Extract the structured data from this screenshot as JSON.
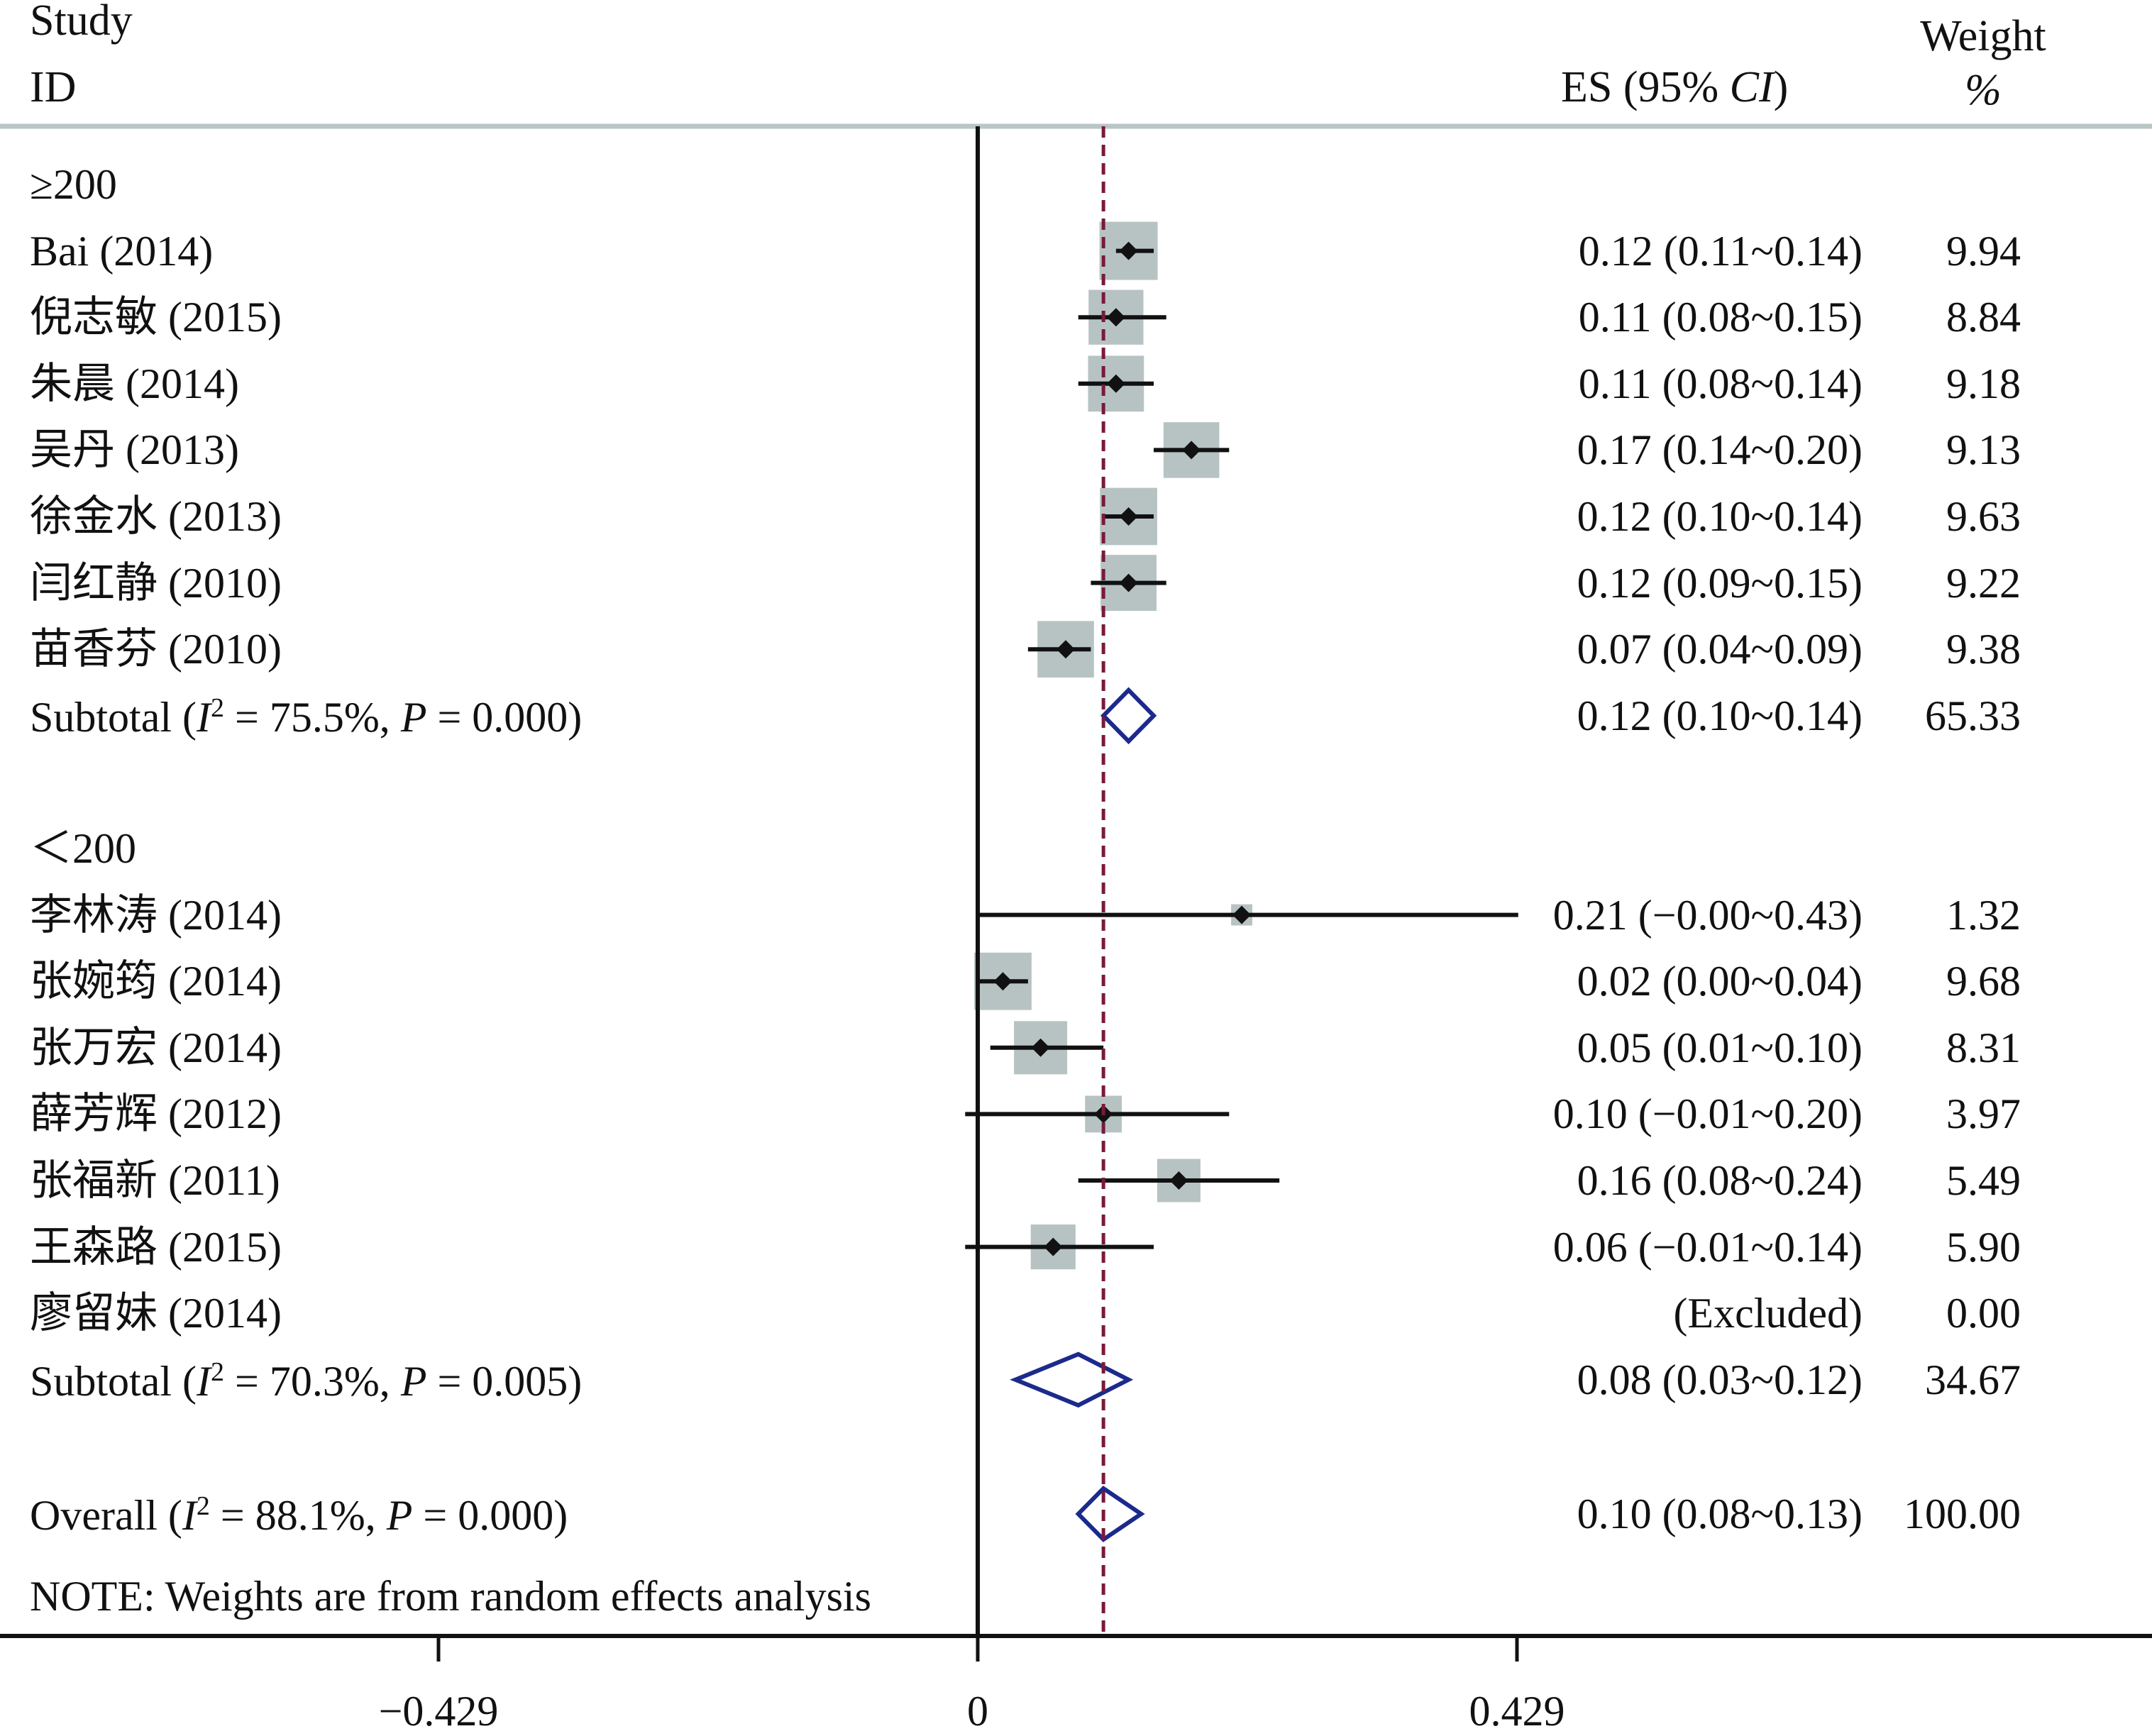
{
  "chart_data": {
    "type": "forest",
    "header": {
      "study_label": "Study",
      "id_label": "ID",
      "es_label": "ES (95% CI)",
      "weight_label": "Weight",
      "weight_unit": "%"
    },
    "null_line_value": 0,
    "overall_line_value": 0.1,
    "x_ticks": [
      {
        "value": -0.429,
        "label": "−0.429"
      },
      {
        "value": 0,
        "label": "0"
      },
      {
        "value": 0.429,
        "label": "0.429"
      }
    ],
    "x_range": [
      -0.78,
      0.93
    ],
    "groups": [
      {
        "label": "≥200",
        "studies": [
          {
            "name": "Bai (2014)",
            "es": 0.12,
            "lo": 0.11,
            "hi": 0.14,
            "es_text": "0.12 (0.11~0.14)",
            "weight": 9.94,
            "weight_text": "9.94"
          },
          {
            "name": "倪志敏 (2015)",
            "es": 0.11,
            "lo": 0.08,
            "hi": 0.15,
            "es_text": "0.11 (0.08~0.15)",
            "weight": 8.84,
            "weight_text": "8.84"
          },
          {
            "name": "朱晨 (2014)",
            "es": 0.11,
            "lo": 0.08,
            "hi": 0.14,
            "es_text": "0.11 (0.08~0.14)",
            "weight": 9.18,
            "weight_text": "9.18"
          },
          {
            "name": "吴丹 (2013)",
            "es": 0.17,
            "lo": 0.14,
            "hi": 0.2,
            "es_text": "0.17 (0.14~0.20)",
            "weight": 9.13,
            "weight_text": "9.13"
          },
          {
            "name": "徐金水 (2013)",
            "es": 0.12,
            "lo": 0.1,
            "hi": 0.14,
            "es_text": "0.12 (0.10~0.14)",
            "weight": 9.63,
            "weight_text": "9.63"
          },
          {
            "name": "闫红静 (2010)",
            "es": 0.12,
            "lo": 0.09,
            "hi": 0.15,
            "es_text": "0.12 (0.09~0.15)",
            "weight": 9.22,
            "weight_text": "9.22"
          },
          {
            "name": "苗香芬 (2010)",
            "es": 0.07,
            "lo": 0.04,
            "hi": 0.09,
            "es_text": "0.07 (0.04~0.09)",
            "weight": 9.38,
            "weight_text": "9.38"
          }
        ],
        "subtotal": {
          "label": "Subtotal",
          "i2": "75.5%",
          "p": "0.000",
          "es": 0.12,
          "lo": 0.1,
          "hi": 0.14,
          "es_text": "0.12 (0.10~0.14)",
          "weight_text": "65.33"
        }
      },
      {
        "label": "＜200",
        "studies": [
          {
            "name": "李林涛 (2014)",
            "es": 0.21,
            "lo": -0.0,
            "hi": 0.43,
            "es_text": "0.21 (−0.00~0.43)",
            "weight": 1.32,
            "weight_text": "1.32"
          },
          {
            "name": "张婉筠 (2014)",
            "es": 0.02,
            "lo": 0.0,
            "hi": 0.04,
            "es_text": "0.02 (0.00~0.04)",
            "weight": 9.68,
            "weight_text": "9.68"
          },
          {
            "name": "张万宏 (2014)",
            "es": 0.05,
            "lo": 0.01,
            "hi": 0.1,
            "es_text": "0.05 (0.01~0.10)",
            "weight": 8.31,
            "weight_text": "8.31"
          },
          {
            "name": "薛芳辉 (2012)",
            "es": 0.1,
            "lo": -0.01,
            "hi": 0.2,
            "es_text": "0.10 (−0.01~0.20)",
            "weight": 3.97,
            "weight_text": "3.97"
          },
          {
            "name": "张福新 (2011)",
            "es": 0.16,
            "lo": 0.08,
            "hi": 0.24,
            "es_text": "0.16 (0.08~0.24)",
            "weight": 5.49,
            "weight_text": "5.49"
          },
          {
            "name": "王森路 (2015)",
            "es": 0.06,
            "lo": -0.01,
            "hi": 0.14,
            "es_text": "0.06 (−0.01~0.14)",
            "weight": 5.9,
            "weight_text": "5.90"
          },
          {
            "name": "廖留妹 (2014)",
            "es": null,
            "lo": null,
            "hi": null,
            "es_text": "(Excluded)",
            "weight": 0.0,
            "weight_text": "0.00"
          }
        ],
        "subtotal": {
          "label": "Subtotal",
          "i2": "70.3%",
          "p": "0.005",
          "es": 0.08,
          "lo": 0.03,
          "hi": 0.12,
          "es_text": "0.08 (0.03~0.12)",
          "weight_text": "34.67"
        }
      }
    ],
    "overall": {
      "label": "Overall",
      "i2": "88.1%",
      "p": "0.000",
      "es": 0.1,
      "lo": 0.08,
      "hi": 0.13,
      "es_text": "0.10 (0.08~0.13)",
      "weight_text": "100.00"
    },
    "note": "NOTE: Weights are from random effects analysis",
    "colors": {
      "box": "#b7c3c3",
      "point": "#111111",
      "ci_line": "#111111",
      "diamond": "#1c2a8c",
      "overall_line": "#7a1a3a",
      "header_rule": "#b9c6c6",
      "axis": "#111111"
    }
  }
}
